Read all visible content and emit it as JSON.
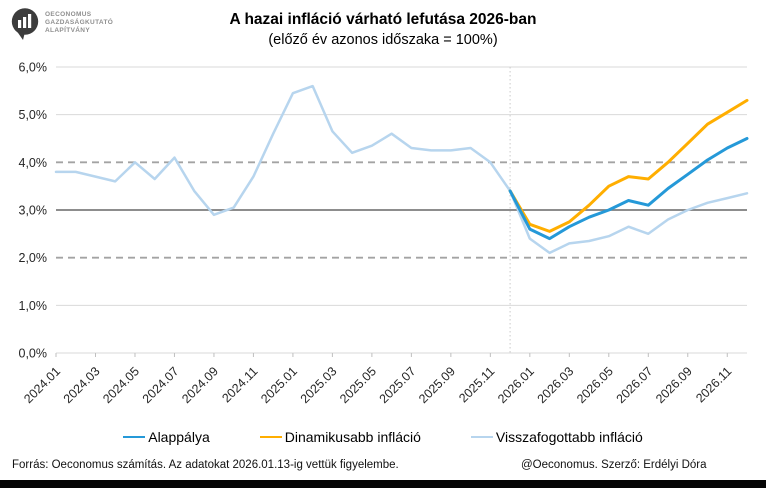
{
  "logo": {
    "line1": "OECONOMUS",
    "line2": "GAZDASÁGKUTATÓ",
    "line3": "ALAPÍTVÁNY"
  },
  "title": "A hazai infláció várható lefutása 2026-ban",
  "subtitle": "(előző év azonos időszaka = 100%)",
  "footer": {
    "source": "Forrás: Oeconomus számítás. Az adatokat 2026.01.13-ig vettük figyelembe.",
    "credit": "@Oeconomus. Szerző: Erdélyi Dóra"
  },
  "legend": [
    {
      "label": "Alappálya",
      "color": "#2599D8"
    },
    {
      "label": "Dinamikusabb infláció",
      "color": "#FFAE00"
    },
    {
      "label": "Visszafogottabb infláció",
      "color": "#B7D5EE"
    }
  ],
  "colors": {
    "gridline": "#dadada",
    "tolerance_dashed": "#a3a3a3",
    "target_solid": "#7d7d7d",
    "forecast_divider": "#c9c9c9",
    "axis_tick": "#bfbfbf",
    "axis_text": "#262626"
  },
  "chart_data": {
    "type": "line",
    "title": "A hazai infláció várható lefutása 2026-ban",
    "subtitle": "(előző év azonos időszaka = 100%)",
    "xlabel": "",
    "ylabel": "",
    "ylim": [
      0,
      6
    ],
    "grid": true,
    "legend_position": "bottom",
    "y_tick_labels": [
      "0,0%",
      "1,0%",
      "2,0%",
      "3,0%",
      "4,0%",
      "5,0%",
      "6,0%"
    ],
    "x": [
      "2024.01",
      "2024.02",
      "2024.03",
      "2024.04",
      "2024.05",
      "2024.06",
      "2024.07",
      "2024.08",
      "2024.09",
      "2024.10",
      "2024.11",
      "2024.12",
      "2025.01",
      "2025.02",
      "2025.03",
      "2025.04",
      "2025.05",
      "2025.06",
      "2025.07",
      "2025.08",
      "2025.09",
      "2025.10",
      "2025.11",
      "2025.12",
      "2026.01",
      "2026.02",
      "2026.03",
      "2026.04",
      "2026.05",
      "2026.06",
      "2026.07",
      "2026.08",
      "2026.09",
      "2026.10",
      "2026.11",
      "2026.12"
    ],
    "x_tick_labels": [
      "2024.01",
      "2024.03",
      "2024.05",
      "2024.07",
      "2024.09",
      "2024.11",
      "2025.01",
      "2025.03",
      "2025.05",
      "2025.07",
      "2025.09",
      "2025.11",
      "2026.01",
      "2026.03",
      "2026.05",
      "2026.07",
      "2026.09",
      "2026.11"
    ],
    "reference_lines": {
      "solid": 3,
      "dashed": [
        2,
        4
      ]
    },
    "forecast_start": "2025.12",
    "series": [
      {
        "name": "Alappálya",
        "color": "#2599D8",
        "width": 3,
        "values": [
          null,
          null,
          null,
          null,
          null,
          null,
          null,
          null,
          null,
          null,
          null,
          null,
          null,
          null,
          null,
          null,
          null,
          null,
          null,
          null,
          null,
          null,
          null,
          3.4,
          2.6,
          2.4,
          2.65,
          2.85,
          3.0,
          3.2,
          3.1,
          3.45,
          3.75,
          4.05,
          4.3,
          4.5
        ]
      },
      {
        "name": "Dinamikusabb infláció",
        "color": "#FFAE00",
        "width": 3,
        "values": [
          null,
          null,
          null,
          null,
          null,
          null,
          null,
          null,
          null,
          null,
          null,
          null,
          null,
          null,
          null,
          null,
          null,
          null,
          null,
          null,
          null,
          null,
          null,
          3.4,
          2.7,
          2.55,
          2.75,
          3.1,
          3.5,
          3.7,
          3.65,
          4.0,
          4.4,
          4.8,
          5.05,
          5.3
        ]
      },
      {
        "name": "Visszafogottabb infláció",
        "color": "#B7D5EE",
        "width": 2.5,
        "values": [
          3.8,
          3.8,
          3.7,
          3.6,
          4.0,
          3.65,
          4.1,
          3.4,
          2.9,
          3.05,
          3.7,
          4.6,
          5.45,
          5.6,
          4.65,
          4.2,
          4.35,
          4.6,
          4.3,
          4.25,
          4.25,
          4.3,
          4.0,
          3.4,
          2.4,
          2.1,
          2.3,
          2.35,
          2.45,
          2.65,
          2.5,
          2.8,
          3.0,
          3.15,
          3.25,
          3.35
        ]
      }
    ]
  }
}
